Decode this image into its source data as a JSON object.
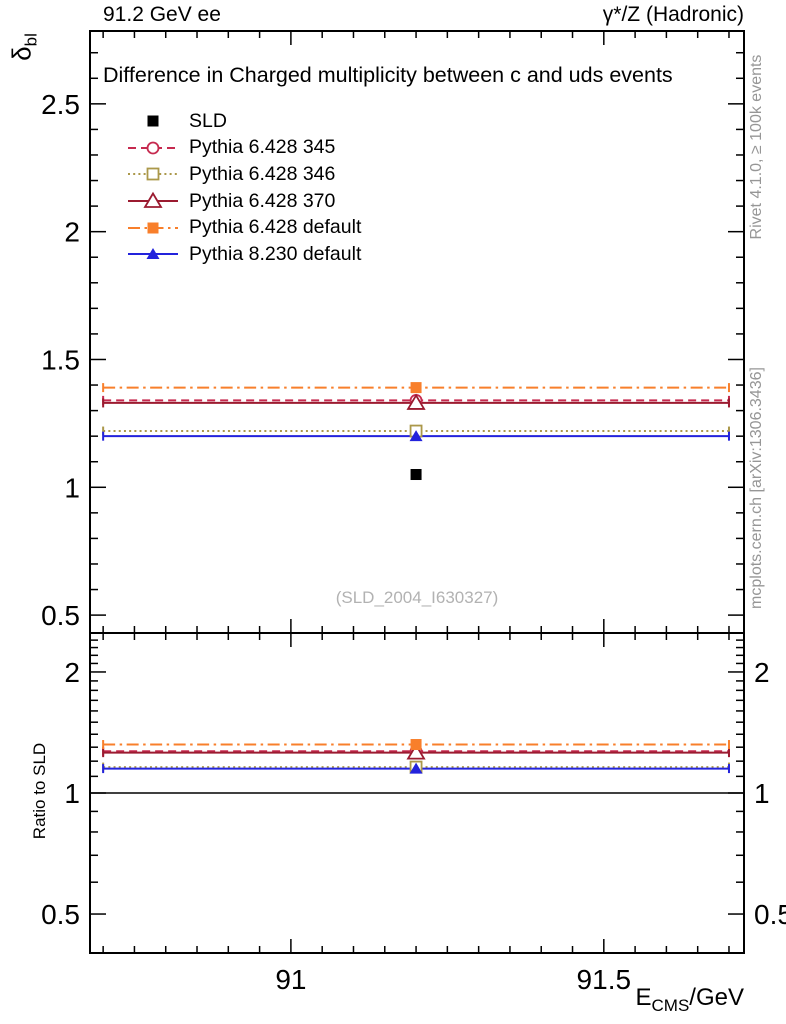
{
  "figure": {
    "header": {
      "left": "91.2 GeV ee",
      "right": "γ*/Z (Hadronic)"
    },
    "title": "Difference in Charged multiplicity between c and uds events",
    "watermark": "(SLD_2004_I630327)",
    "side_notes": {
      "right_top": "Rivet 4.1.0, ≥ 100k events",
      "right_bottom": "mcplots.cern.ch [arXiv:1306.3436]"
    },
    "axes": {
      "main_y_label": {
        "symbol": "δ",
        "subscript": "bl"
      },
      "ratio_y_label": "Ratio to SLD",
      "x_label": {
        "symbol": "E",
        "subscript": "CMS",
        "suffix": "/GeV"
      }
    }
  },
  "chart_data": {
    "type": "line",
    "title": "Difference in Charged multiplicity between c and uds events",
    "xlabel": "E_CMS/GeV",
    "ylabel": "δ_bl",
    "ratio_ylabel": "Ratio to SLD",
    "x_point": 91.2,
    "bin_range": [
      90.7,
      91.7
    ],
    "xlim": [
      90.679,
      91.724
    ],
    "main_ylim": [
      0.43,
      2.785
    ],
    "ratio_ylim": [
      0.4,
      2.5
    ],
    "ratio_scale": "log",
    "x_major_ticks": [
      91,
      91.5
    ],
    "x_major_tick_labels": [
      "91",
      "91.5"
    ],
    "x_minor_step": 0.05,
    "main_y_major_ticks": [
      0.5,
      1,
      1.5,
      2,
      2.5
    ],
    "main_y_major_tick_labels": [
      "0.5",
      "1",
      "1.5",
      "2",
      "2.5"
    ],
    "main_y_minor_step": 0.1,
    "ratio_y_major_ticks": [
      0.5,
      1,
      2
    ],
    "ratio_y_major_tick_labels": [
      "0.5",
      "1",
      "2"
    ],
    "ratio_reference": 1.0,
    "grid": false,
    "legend_position": "top-left",
    "series": [
      {
        "label": "SLD",
        "color": "#000000",
        "marker": "filled-square",
        "line": "none",
        "value": 1.05,
        "ratio": null
      },
      {
        "label": "Pythia 6.428 345",
        "color": "#c62a4f",
        "marker": "open-circle",
        "line": "dashed",
        "value": 1.34,
        "ratio": 1.27
      },
      {
        "label": "Pythia 6.428 346",
        "color": "#ab984a",
        "marker": "open-square",
        "line": "dotted",
        "value": 1.22,
        "ratio": 1.16
      },
      {
        "label": "Pythia 6.428 370",
        "color": "#9b1b30",
        "marker": "open-triangle",
        "line": "solid",
        "value": 1.33,
        "ratio": 1.26
      },
      {
        "label": "Pythia 6.428 default",
        "color": "#f87f2b",
        "marker": "filled-square",
        "line": "dashdot",
        "value": 1.39,
        "ratio": 1.32
      },
      {
        "label": "Pythia 8.230 default",
        "color": "#2323dc",
        "marker": "filled-triangle",
        "line": "solid",
        "value": 1.2,
        "ratio": 1.15
      }
    ]
  }
}
